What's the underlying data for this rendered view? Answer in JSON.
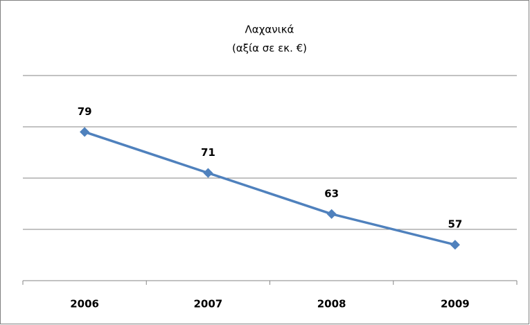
{
  "chart_data": {
    "type": "line",
    "title": "Λαχανικά",
    "subtitle": "(αξία σε εκ. €)",
    "categories": [
      "2006",
      "2007",
      "2008",
      "2009"
    ],
    "series": [
      {
        "name": "Λαχανικά",
        "color": "#4f81bd",
        "values": [
          79,
          71,
          63,
          57
        ]
      }
    ],
    "ylim": [
      50,
      90
    ],
    "yticks": [
      50,
      60,
      70,
      80,
      90
    ],
    "grid": true,
    "legend": false
  }
}
